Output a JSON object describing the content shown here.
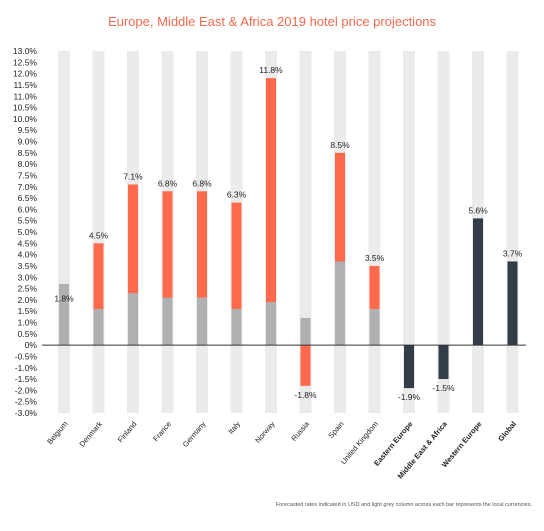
{
  "chart_data": {
    "type": "bar",
    "title": "Europe, Middle East & Africa 2019 hotel price projections",
    "ylim": [
      -3.0,
      13.0
    ],
    "y_ticks": [
      "13.0%",
      "12.5%",
      "12.0%",
      "11.5%",
      "11.0%",
      "10.5%",
      "10.0%",
      "9.5%",
      "9.0%",
      "8.5%",
      "8.0%",
      "7.5%",
      "7.0%",
      "6.5%",
      "6.0%",
      "5.5%",
      "5.0%",
      "4.5%",
      "4.0%",
      "3.5%",
      "3.0%",
      "2.5%",
      "2.0%",
      "1.5%",
      "1.0%",
      "0.5%",
      "0%",
      "-0.5%",
      "-1.0%",
      "-1.5%",
      "-2.0%",
      "-2.5%",
      "-3.0%"
    ],
    "categories": [
      "Belgium",
      "Denmark",
      "Finland",
      "France",
      "Germany",
      "Italy",
      "Norway",
      "Russia",
      "Spain",
      "United Kingdom",
      "Eastern Europe",
      "Middle East & Africa",
      "Western Europe",
      "Global"
    ],
    "category_bold": [
      false,
      false,
      false,
      false,
      false,
      false,
      false,
      false,
      false,
      false,
      true,
      true,
      true,
      true
    ],
    "series": [
      {
        "values": [
          1.8,
          4.5,
          7.1,
          6.8,
          6.8,
          6.3,
          11.8,
          -1.8,
          8.5,
          3.5,
          -1.9,
          -1.5,
          5.6,
          3.7
        ]
      },
      {
        "values": [
          2.7,
          1.6,
          2.3,
          2.1,
          2.1,
          1.6,
          1.9,
          1.2,
          3.7,
          1.6,
          null,
          null,
          null,
          null
        ]
      }
    ],
    "data_labels": [
      "1.8%",
      "4.5%",
      "7.1%",
      "6.8%",
      "6.8%",
      "6.3%",
      "11.8%",
      "-1.8%",
      "8.5%",
      "3.5%",
      "-1.9%",
      "-1.5%",
      "5.6%",
      "3.7%"
    ],
    "grid": false,
    "legend": "none"
  },
  "footnote": "Forecasted rates indicated in USD and light grey column across each bar represents the local currencies.",
  "colors": {
    "title": "#f26b4f",
    "country_bar": "#ff6a4d",
    "local_currency_bar": "#aeb0b2",
    "aggregate_bar": "#333d47",
    "background_column": "#ebebeb",
    "axis": "#333333"
  }
}
